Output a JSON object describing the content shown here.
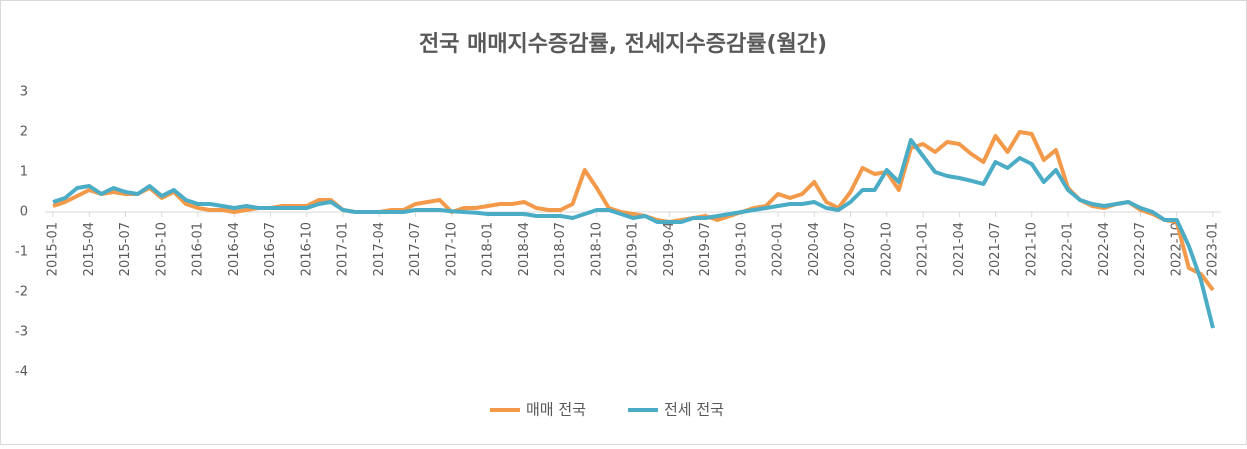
{
  "chart_data": {
    "type": "line",
    "title": "전국 매매지수증감률, 전세지수증감률(월간)",
    "categories": [
      "2015-01",
      null,
      null,
      "2015-04",
      null,
      null,
      "2015-07",
      null,
      null,
      "2015-10",
      null,
      null,
      "2016-01",
      null,
      null,
      "2016-04",
      null,
      null,
      "2016-07",
      null,
      null,
      "2016-10",
      null,
      null,
      "2017-01",
      null,
      null,
      "2017-04",
      null,
      null,
      "2017-07",
      null,
      null,
      "2017-10",
      null,
      null,
      "2018-01",
      null,
      null,
      "2018-04",
      null,
      null,
      "2018-07",
      null,
      null,
      "2018-10",
      null,
      null,
      "2019-01",
      null,
      null,
      "2019-04",
      null,
      null,
      "2019-07",
      null,
      null,
      "2019-10",
      null,
      null,
      "2020-01",
      null,
      null,
      "2020-04",
      null,
      null,
      "2020-07",
      null,
      null,
      "2020-10",
      null,
      null,
      "2021-01",
      null,
      null,
      "2021-04",
      null,
      null,
      "2021-07",
      null,
      null,
      "2021-10",
      null,
      null,
      "2022-01",
      null,
      null,
      "2022-04",
      null,
      null,
      "2022-07",
      null,
      null,
      "2022-10",
      null,
      null,
      "2023-01"
    ],
    "series": [
      {
        "name": "매매 전국",
        "color": "#f39a4a",
        "values": [
          0.15,
          0.25,
          0.4,
          0.55,
          0.45,
          0.5,
          0.45,
          0.45,
          0.6,
          0.35,
          0.5,
          0.2,
          0.1,
          0.05,
          0.05,
          0.0,
          0.05,
          0.1,
          0.1,
          0.15,
          0.15,
          0.15,
          0.3,
          0.3,
          0.05,
          0.0,
          0.0,
          0.0,
          0.05,
          0.05,
          0.2,
          0.25,
          0.3,
          0.0,
          0.1,
          0.1,
          0.15,
          0.2,
          0.2,
          0.25,
          0.1,
          0.05,
          0.05,
          0.2,
          1.05,
          0.6,
          0.1,
          0.0,
          -0.05,
          -0.1,
          -0.2,
          -0.25,
          -0.2,
          -0.15,
          -0.1,
          -0.2,
          -0.1,
          0.0,
          0.1,
          0.15,
          0.45,
          0.35,
          0.45,
          0.75,
          0.25,
          0.1,
          0.5,
          1.1,
          0.95,
          1.0,
          0.55,
          1.6,
          1.7,
          1.5,
          1.75,
          1.7,
          1.45,
          1.25,
          1.9,
          1.5,
          2.0,
          1.95,
          1.3,
          1.55,
          0.6,
          0.3,
          0.15,
          0.1,
          0.2,
          0.25,
          0.05,
          -0.05,
          -0.2,
          -0.25,
          -1.4,
          -1.55,
          -1.95
        ]
      },
      {
        "name": "전세 전국",
        "color": "#4bacc6",
        "values": [
          0.25,
          0.35,
          0.6,
          0.65,
          0.45,
          0.6,
          0.5,
          0.45,
          0.65,
          0.4,
          0.55,
          0.3,
          0.2,
          0.2,
          0.15,
          0.1,
          0.15,
          0.1,
          0.1,
          0.1,
          0.1,
          0.1,
          0.2,
          0.25,
          0.05,
          0.0,
          0.0,
          0.0,
          0.0,
          0.0,
          0.05,
          0.05,
          0.05,
          0.02,
          0.0,
          -0.02,
          -0.05,
          -0.05,
          -0.05,
          -0.05,
          -0.1,
          -0.1,
          -0.1,
          -0.15,
          -0.05,
          0.05,
          0.05,
          -0.05,
          -0.15,
          -0.1,
          -0.25,
          -0.25,
          -0.25,
          -0.15,
          -0.15,
          -0.1,
          -0.05,
          0.0,
          0.05,
          0.1,
          0.15,
          0.2,
          0.2,
          0.25,
          0.1,
          0.05,
          0.25,
          0.55,
          0.55,
          1.05,
          0.75,
          1.8,
          1.4,
          1.0,
          0.9,
          0.85,
          0.78,
          0.7,
          1.25,
          1.1,
          1.35,
          1.2,
          0.75,
          1.05,
          0.55,
          0.3,
          0.2,
          0.15,
          0.2,
          0.25,
          0.1,
          0.0,
          -0.2,
          -0.2,
          -0.85,
          -1.7,
          -2.9
        ]
      }
    ],
    "ylim": [
      -4,
      3
    ],
    "yticks": [
      -4,
      -3,
      -2,
      -1,
      0,
      1,
      2,
      3
    ],
    "grid": false,
    "legend": "bottom"
  }
}
